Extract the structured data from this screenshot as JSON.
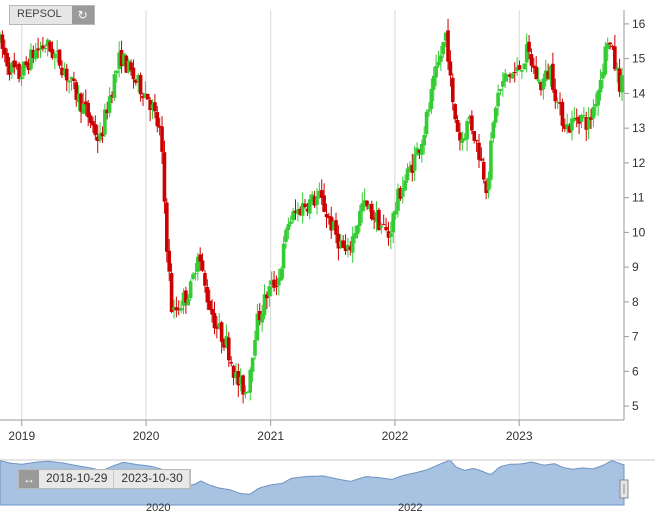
{
  "symbol": "REPSOL",
  "icons": {
    "refresh": "refresh-icon",
    "range": "range-arrows-icon"
  },
  "navigator": {
    "start_date": "2018-10-29",
    "end_date": "2023-10-30",
    "labels": [
      "2020",
      "2022"
    ]
  },
  "colors": {
    "up": "#33cc33",
    "down": "#cc0000",
    "navigator_fill": "#a8c3e2",
    "navigator_line": "#6f93c4"
  },
  "chart_data": {
    "type": "candlestick",
    "title": "",
    "xlabel": "",
    "ylabel": "",
    "period": "weekly",
    "x_tick_labels": [
      "2019",
      "2020",
      "2021",
      "2022",
      "2023"
    ],
    "y_tick_labels": [
      "5",
      "6",
      "7",
      "8",
      "9",
      "10",
      "11",
      "12",
      "13",
      "14",
      "15",
      "16"
    ],
    "ylim": [
      4.6,
      16.4
    ],
    "grid": "vertical",
    "anchors": [
      [
        "2018-10-29",
        15.6
      ],
      [
        "2018-12-01",
        14.8
      ],
      [
        "2019-01-01",
        14.5
      ],
      [
        "2019-02-15",
        15.2
      ],
      [
        "2019-03-20",
        15.4
      ],
      [
        "2019-05-01",
        14.9
      ],
      [
        "2019-06-15",
        14.0
      ],
      [
        "2019-07-20",
        13.4
      ],
      [
        "2019-08-25",
        12.6
      ],
      [
        "2019-09-20",
        13.8
      ],
      [
        "2019-10-25",
        15.1
      ],
      [
        "2019-12-05",
        14.4
      ],
      [
        "2020-01-15",
        13.9
      ],
      [
        "2020-02-20",
        12.8
      ],
      [
        "2020-03-10",
        9.5
      ],
      [
        "2020-03-25",
        7.6
      ],
      [
        "2020-04-20",
        8.0
      ],
      [
        "2020-05-20",
        8.4
      ],
      [
        "2020-06-08",
        9.5
      ],
      [
        "2020-07-01",
        8.3
      ],
      [
        "2020-08-01",
        7.3
      ],
      [
        "2020-09-01",
        6.8
      ],
      [
        "2020-10-01",
        5.7
      ],
      [
        "2020-10-30",
        5.4
      ],
      [
        "2020-11-25",
        7.3
      ],
      [
        "2020-12-31",
        8.3
      ],
      [
        "2021-02-01",
        8.7
      ],
      [
        "2021-03-01",
        10.3
      ],
      [
        "2021-04-15",
        10.8
      ],
      [
        "2021-06-01",
        11.0
      ],
      [
        "2021-07-15",
        10.0
      ],
      [
        "2021-08-20",
        9.3
      ],
      [
        "2021-10-05",
        10.8
      ],
      [
        "2021-11-15",
        10.4
      ],
      [
        "2021-12-20",
        9.9
      ],
      [
        "2022-01-20",
        11.1
      ],
      [
        "2022-03-01",
        12.0
      ],
      [
        "2022-04-01",
        12.8
      ],
      [
        "2022-05-01",
        14.2
      ],
      [
        "2022-06-08",
        15.8
      ],
      [
        "2022-06-25",
        13.7
      ],
      [
        "2022-07-20",
        12.6
      ],
      [
        "2022-08-15",
        13.3
      ],
      [
        "2022-09-15",
        12.2
      ],
      [
        "2022-10-05",
        11.3
      ],
      [
        "2022-11-01",
        13.8
      ],
      [
        "2022-12-01",
        14.5
      ],
      [
        "2023-01-01",
        14.6
      ],
      [
        "2023-02-01",
        15.2
      ],
      [
        "2023-03-10",
        14.2
      ],
      [
        "2023-04-10",
        14.7
      ],
      [
        "2023-05-05",
        13.5
      ],
      [
        "2023-06-01",
        13.0
      ],
      [
        "2023-07-01",
        13.4
      ],
      [
        "2023-08-01",
        13.1
      ],
      [
        "2023-09-01",
        14.3
      ],
      [
        "2023-09-25",
        15.6
      ],
      [
        "2023-10-30",
        14.3
      ]
    ]
  }
}
